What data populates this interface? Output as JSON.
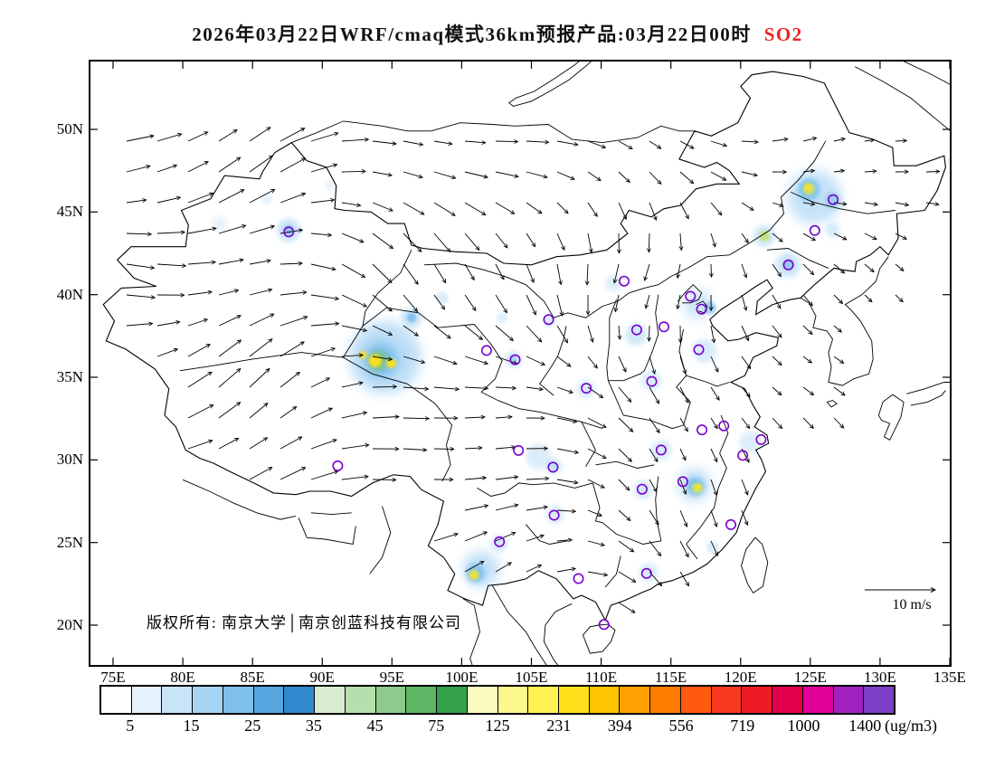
{
  "title": {
    "main": "2026年03月22日WRF/cmaq模式36km预报产品:03月22日00时",
    "species": "SO2",
    "species_color": "#EE2222"
  },
  "map": {
    "copyright": "版权所有: 南京大学│南京创蓝科技有限公司",
    "wind_scale_label": "10 m/s"
  },
  "axes": {
    "y_ticks": [
      "50N",
      "45N",
      "40N",
      "35N",
      "30N",
      "25N",
      "20N"
    ],
    "x_ticks": [
      "75E",
      "80E",
      "85E",
      "90E",
      "95E",
      "100E",
      "105E",
      "110E",
      "115E",
      "120E",
      "125E",
      "130E",
      "135E"
    ]
  },
  "colorbar": {
    "unit": "(ug/m3)",
    "labels": [
      "5",
      "15",
      "25",
      "35",
      "45",
      "75",
      "125",
      "231",
      "394",
      "556",
      "719",
      "1000",
      "1400"
    ],
    "colors": [
      "#FFFFFF",
      "#E6F3FC",
      "#C8E5F8",
      "#A6D4F3",
      "#7FBFEB",
      "#57A6DF",
      "#3389CE",
      "#D8EDD0",
      "#B5DFAC",
      "#8CCB8C",
      "#5DB764",
      "#34A04C",
      "#F9FBC0",
      "#FDF88E",
      "#FFF152",
      "#FFE01B",
      "#FFC300",
      "#FFA000",
      "#FF7D00",
      "#FF5A0F",
      "#F93822",
      "#ED1C24",
      "#E4004B",
      "#E10098",
      "#A020C0",
      "#7D3FC8"
    ]
  },
  "blob_colors": {
    "halo": "#B9DCF6",
    "paleblue": "#DCEDFA",
    "cyan": "#6FB9EC",
    "green": "#7FC57F",
    "ygreen": "#C7E07A",
    "yellow": "#FFE01B"
  },
  "chart_data": {
    "type": "heatmap",
    "title": "2026年03月22日WRF/cmaq模式36km预报产品:03月22日00时 SO2",
    "pollutant": "SO2",
    "unit": "ug/m3",
    "model": "WRF/cmaq 36km",
    "forecast_date": "2026年03月22日",
    "forecast_valid": "03月22日00时",
    "xlim": [
      75,
      135
    ],
    "ylim": [
      17.6,
      54.1
    ],
    "x_tick_lons": [
      75,
      80,
      85,
      90,
      95,
      100,
      105,
      110,
      115,
      120,
      125,
      130,
      135
    ],
    "y_tick_lats": [
      50,
      45,
      40,
      35,
      30,
      25,
      20
    ],
    "scale_breaks": [
      5,
      15,
      25,
      35,
      45,
      75,
      125,
      231,
      394,
      556,
      719,
      1000,
      1400
    ],
    "wind_reference_mps": 10,
    "hotspots": [
      [
        94.5,
        36.2,
        40,
        "halo",
        0.9
      ],
      [
        94.2,
        36.05,
        19,
        "cyan",
        0.9
      ],
      [
        94.0,
        36.0,
        11,
        "green",
        0.9
      ],
      [
        93.8,
        36.0,
        7,
        "yellow",
        0.95
      ],
      [
        94.95,
        35.85,
        5.5,
        "yellow",
        0.9
      ],
      [
        92.9,
        36.35,
        4.5,
        "yellow",
        0.85
      ],
      [
        96.4,
        38.6,
        11,
        "halo",
        0.8
      ],
      [
        96.4,
        38.6,
        5,
        "cyan",
        0.8
      ],
      [
        87.6,
        43.9,
        13,
        "halo",
        0.75
      ],
      [
        87.6,
        43.9,
        5.5,
        "cyan",
        0.7
      ],
      [
        82.6,
        44.3,
        8,
        "paleblue",
        0.7
      ],
      [
        86.0,
        45.8,
        7,
        "paleblue",
        0.6
      ],
      [
        90.6,
        46.6,
        6,
        "paleblue",
        0.5
      ],
      [
        103.7,
        36.1,
        9,
        "halo",
        0.65
      ],
      [
        103.7,
        36.1,
        4,
        "cyan",
        0.5
      ],
      [
        98.6,
        39.8,
        7,
        "halo",
        0.5
      ],
      [
        102.9,
        38.6,
        6,
        "halo",
        0.45
      ],
      [
        106.3,
        38.4,
        7,
        "halo",
        0.5
      ],
      [
        110.9,
        40.7,
        9,
        "halo",
        0.5
      ],
      [
        112.5,
        37.6,
        12,
        "halo",
        0.65
      ],
      [
        116.9,
        39.4,
        16,
        "halo",
        0.7
      ],
      [
        117.8,
        39.2,
        7,
        "cyan",
        0.55
      ],
      [
        117.4,
        36.6,
        13,
        "halo",
        0.55
      ],
      [
        113.6,
        34.8,
        11,
        "halo",
        0.55
      ],
      [
        108.9,
        34.3,
        10,
        "halo",
        0.55
      ],
      [
        114.3,
        30.6,
        11,
        "halo",
        0.6
      ],
      [
        120.7,
        31.1,
        12,
        "halo",
        0.5
      ],
      [
        125.3,
        45.9,
        30,
        "halo",
        0.8
      ],
      [
        124.9,
        46.35,
        12,
        "cyan",
        0.85
      ],
      [
        124.9,
        46.4,
        7,
        "ygreen",
        0.95
      ],
      [
        124.85,
        46.47,
        4,
        "yellow",
        0.85
      ],
      [
        126.6,
        45.7,
        9,
        "cyan",
        0.5
      ],
      [
        126.6,
        43.9,
        8,
        "halo",
        0.6
      ],
      [
        121.7,
        43.55,
        12,
        "halo",
        0.7
      ],
      [
        121.7,
        43.55,
        6,
        "ygreen",
        0.9
      ],
      [
        123.4,
        41.8,
        14,
        "halo",
        0.7
      ],
      [
        123.4,
        41.8,
        6,
        "cyan",
        0.6
      ],
      [
        116.7,
        28.5,
        18,
        "halo",
        0.85
      ],
      [
        116.75,
        28.4,
        10,
        "cyan",
        0.85
      ],
      [
        116.85,
        28.3,
        6,
        "ygreen",
        0.95
      ],
      [
        117.0,
        28.32,
        3.5,
        "yellow",
        0.9
      ],
      [
        113.0,
        28.2,
        10,
        "halo",
        0.65
      ],
      [
        105.5,
        30.2,
        14,
        "halo",
        0.5
      ],
      [
        106.6,
        29.6,
        8,
        "cyan",
        0.45
      ],
      [
        106.7,
        26.7,
        10,
        "halo",
        0.55
      ],
      [
        101.4,
        23.4,
        20,
        "halo",
        0.85
      ],
      [
        101.0,
        23.15,
        10,
        "cyan",
        0.85
      ],
      [
        100.9,
        23.05,
        6,
        "ygreen",
        0.95
      ],
      [
        100.85,
        23.0,
        3.5,
        "yellow",
        0.85
      ],
      [
        102.7,
        24.95,
        9,
        "halo",
        0.65
      ],
      [
        113.4,
        23.2,
        10,
        "halo",
        0.55
      ],
      [
        118.0,
        24.7,
        7,
        "halo",
        0.45
      ]
    ],
    "stations_lonlat": [
      [
        87.6,
        43.8
      ],
      [
        126.63,
        45.75
      ],
      [
        125.32,
        43.88
      ],
      [
        123.43,
        41.8
      ],
      [
        116.4,
        39.9
      ],
      [
        117.2,
        39.12
      ],
      [
        114.5,
        38.05
      ],
      [
        112.55,
        37.87
      ],
      [
        111.65,
        40.82
      ],
      [
        106.23,
        38.49
      ],
      [
        103.83,
        36.06
      ],
      [
        101.78,
        36.62
      ],
      [
        108.94,
        34.34
      ],
      [
        113.63,
        34.75
      ],
      [
        117.0,
        36.67
      ],
      [
        117.23,
        31.82
      ],
      [
        118.8,
        32.06
      ],
      [
        121.47,
        31.23
      ],
      [
        120.15,
        30.27
      ],
      [
        114.3,
        30.6
      ],
      [
        112.94,
        28.23
      ],
      [
        115.86,
        28.68
      ],
      [
        119.3,
        26.08
      ],
      [
        113.26,
        23.13
      ],
      [
        108.37,
        22.82
      ],
      [
        110.2,
        20.04
      ],
      [
        106.63,
        26.65
      ],
      [
        102.71,
        25.05
      ],
      [
        104.07,
        30.57
      ],
      [
        106.55,
        29.56
      ],
      [
        91.11,
        29.64
      ]
    ]
  }
}
